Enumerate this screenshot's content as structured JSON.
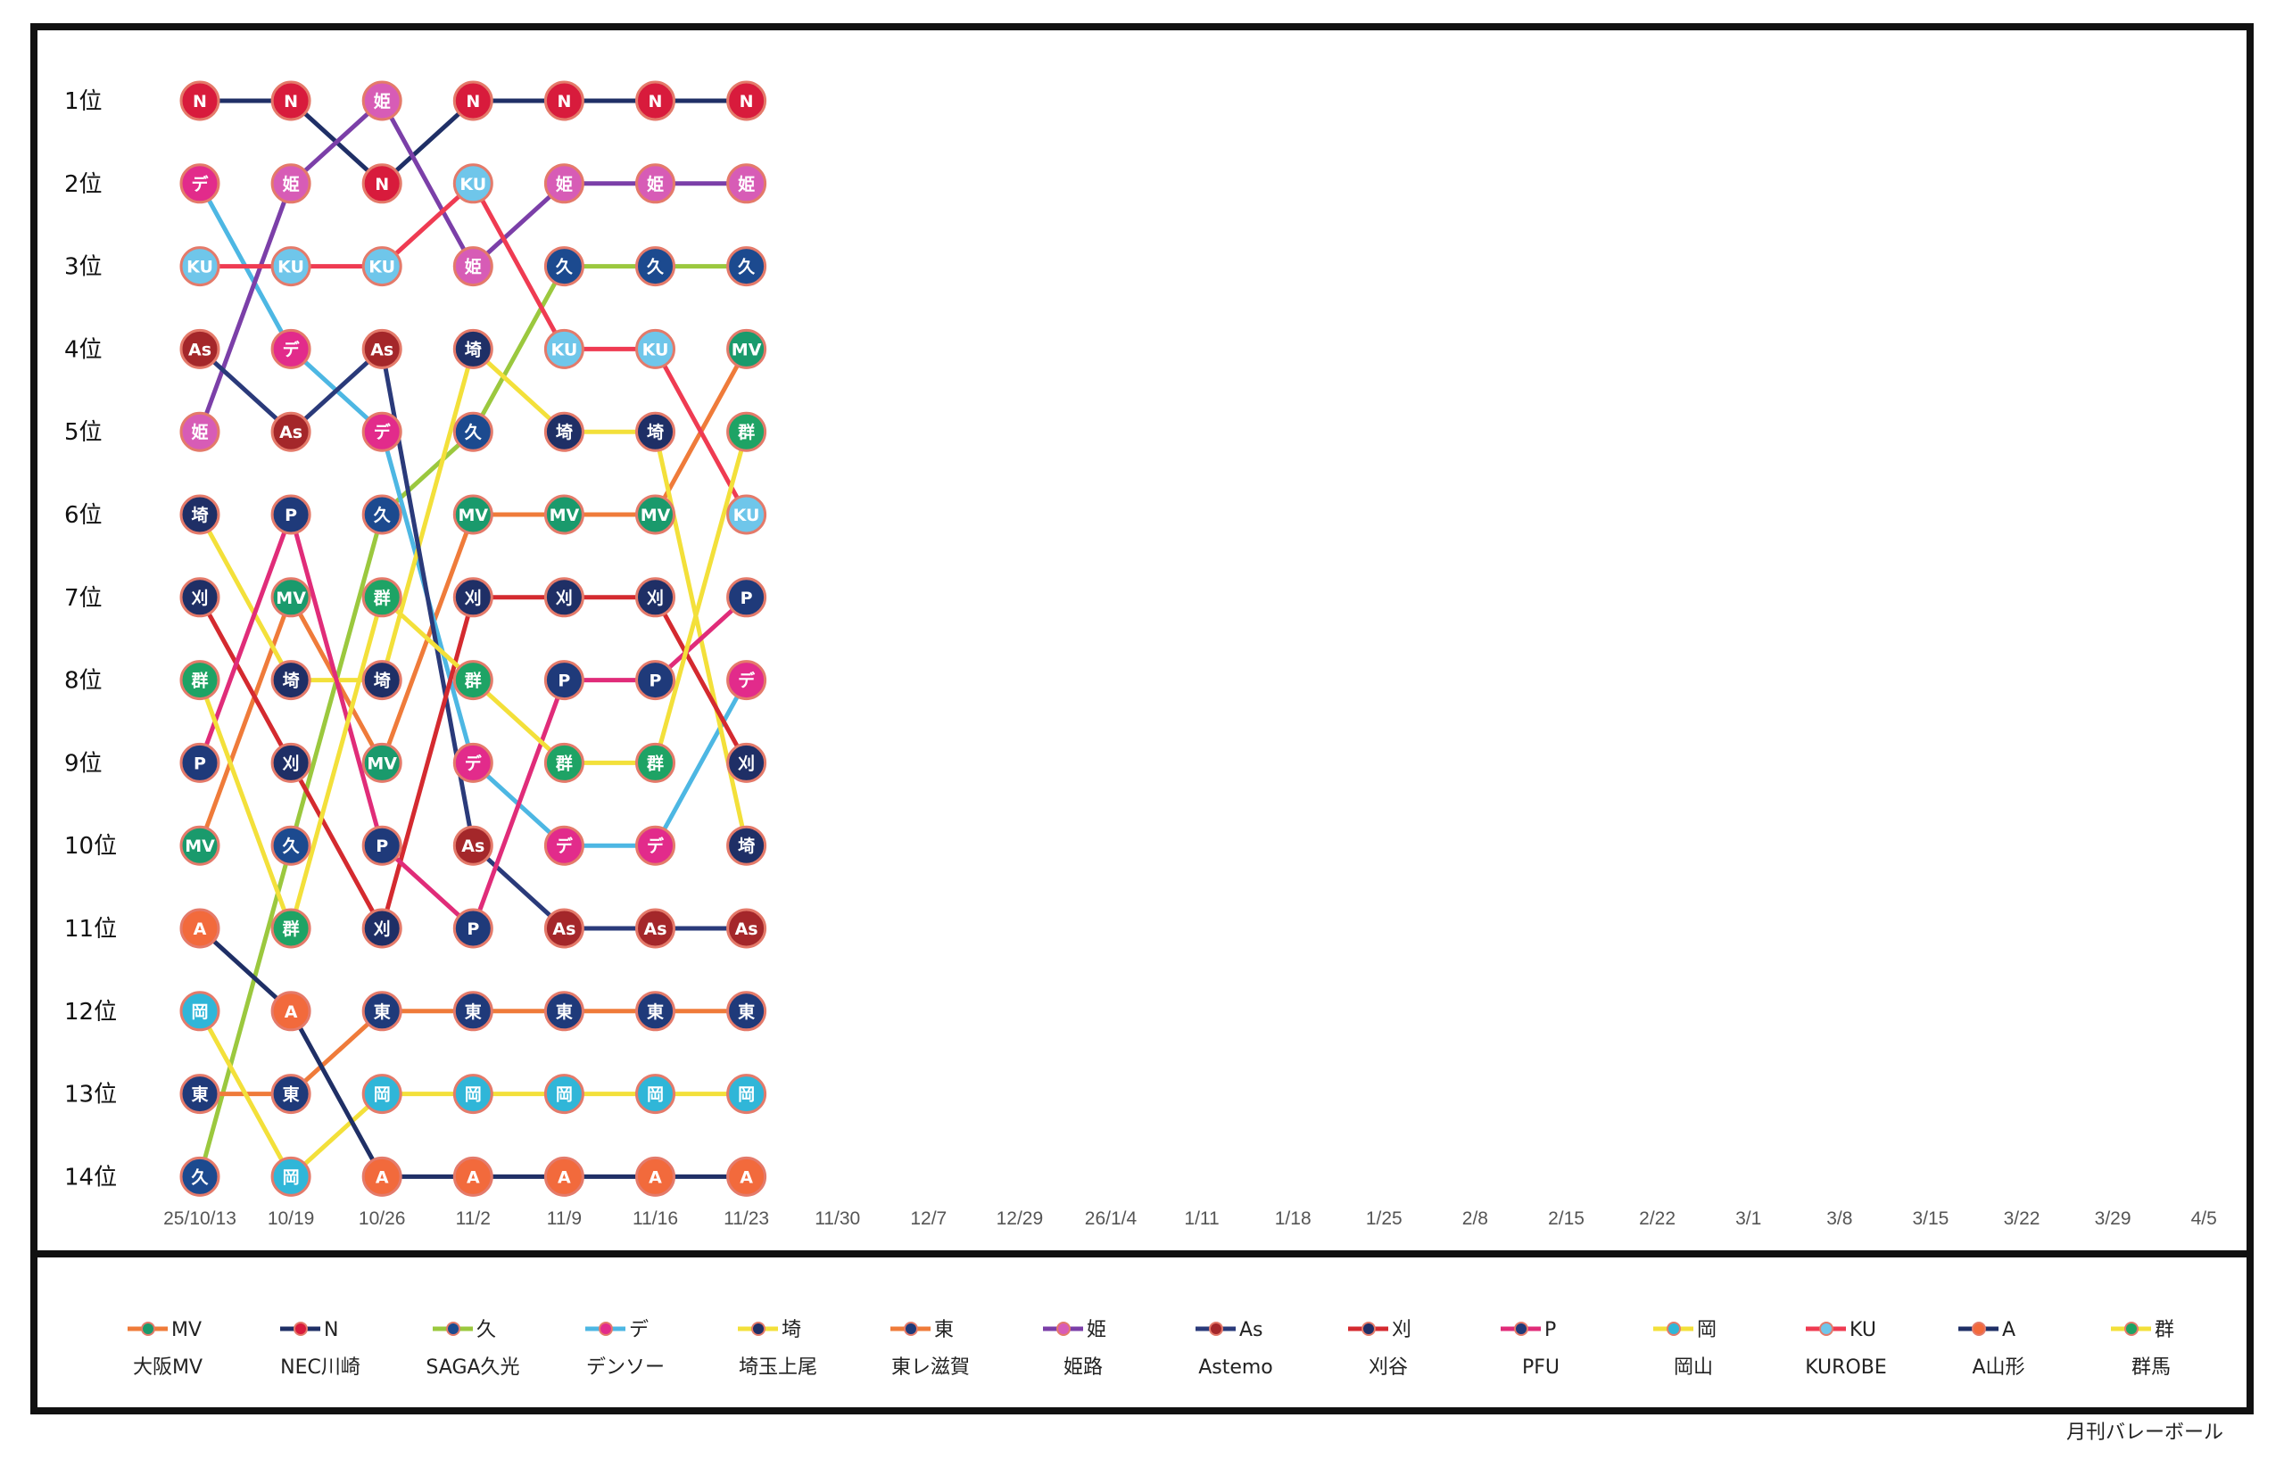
{
  "chart_data": {
    "type": "line",
    "title": "",
    "xlabel": "",
    "ylabel": "",
    "x": [
      "25/10/13",
      "10/19",
      "10/26",
      "11/2",
      "11/9",
      "11/16",
      "11/23",
      "11/30",
      "12/7",
      "12/29",
      "26/1/4",
      "1/11",
      "1/18",
      "1/25",
      "2/8",
      "2/15",
      "2/22",
      "3/1",
      "3/8",
      "3/15",
      "3/22",
      "3/29",
      "4/5"
    ],
    "y_ticks": [
      "1位",
      "2位",
      "3位",
      "4位",
      "5位",
      "6位",
      "7位",
      "8位",
      "9位",
      "10位",
      "11位",
      "12位",
      "13位",
      "14位"
    ],
    "ylim": [
      1,
      14
    ],
    "y_inverted": true,
    "grid": false,
    "legend_position": "bottom",
    "series": [
      {
        "abbr": "MV",
        "name": "大阪MV",
        "line_color": "#ef7b3a",
        "marker_color": "#1a9a6c",
        "ranks": [
          10,
          7,
          9,
          6,
          6,
          6,
          4
        ]
      },
      {
        "abbr": "N",
        "name": "NEC川崎",
        "line_color": "#1f2f66",
        "marker_color": "#d81b3c",
        "ranks": [
          1,
          1,
          2,
          1,
          1,
          1,
          1
        ]
      },
      {
        "abbr": "久",
        "name": "SAGA久光",
        "line_color": "#9bc83e",
        "marker_color": "#1c4a8f",
        "ranks": [
          14,
          10,
          6,
          5,
          3,
          3,
          3
        ]
      },
      {
        "abbr": "デ",
        "name": "デンソー",
        "line_color": "#4db7e3",
        "marker_color": "#e22b8b",
        "ranks": [
          2,
          4,
          5,
          9,
          10,
          10,
          8
        ]
      },
      {
        "abbr": "埼",
        "name": "埼玉上尾",
        "line_color": "#f3e03a",
        "marker_color": "#1f2f66",
        "ranks": [
          6,
          8,
          8,
          4,
          5,
          5,
          10
        ]
      },
      {
        "abbr": "東",
        "name": "東レ滋賀",
        "line_color": "#ef7b3a",
        "marker_color": "#1f3a7a",
        "ranks": [
          13,
          13,
          12,
          12,
          12,
          12,
          12
        ]
      },
      {
        "abbr": "姫",
        "name": "姫路",
        "line_color": "#7b3fa8",
        "marker_color": "#d75cb6",
        "ranks": [
          5,
          2,
          1,
          3,
          2,
          2,
          2
        ]
      },
      {
        "abbr": "As",
        "name": "Astemo",
        "line_color": "#2a3a7a",
        "marker_color": "#a4272a",
        "ranks": [
          4,
          5,
          4,
          10,
          11,
          11,
          11
        ]
      },
      {
        "abbr": "刈",
        "name": "刈谷",
        "line_color": "#d42a2f",
        "marker_color": "#1f2f66",
        "ranks": [
          7,
          9,
          11,
          7,
          7,
          7,
          9
        ]
      },
      {
        "abbr": "P",
        "name": "PFU",
        "line_color": "#e02c79",
        "marker_color": "#1f3a7a",
        "ranks": [
          9,
          6,
          10,
          11,
          8,
          8,
          7
        ]
      },
      {
        "abbr": "岡",
        "name": "岡山",
        "line_color": "#f3e03a",
        "marker_color": "#30b6d8",
        "ranks": [
          12,
          14,
          13,
          13,
          13,
          13,
          13
        ]
      },
      {
        "abbr": "KU",
        "name": "KUROBE",
        "line_color": "#ef3b52",
        "marker_color": "#6fc6ea",
        "ranks": [
          3,
          3,
          3,
          2,
          4,
          4,
          6
        ]
      },
      {
        "abbr": "A",
        "name": "A山形",
        "line_color": "#1f2f66",
        "marker_color": "#f26a3c",
        "ranks": [
          11,
          12,
          14,
          14,
          14,
          14,
          14
        ]
      },
      {
        "abbr": "群",
        "name": "群馬",
        "line_color": "#f3e03a",
        "marker_color": "#1ea365",
        "ranks": [
          8,
          11,
          7,
          8,
          9,
          9,
          5
        ]
      }
    ]
  },
  "credit": "月刊バレーボール",
  "colors": {
    "frame": "#111111",
    "background": "#ffffff",
    "marker_outline": "#e47a6a"
  }
}
